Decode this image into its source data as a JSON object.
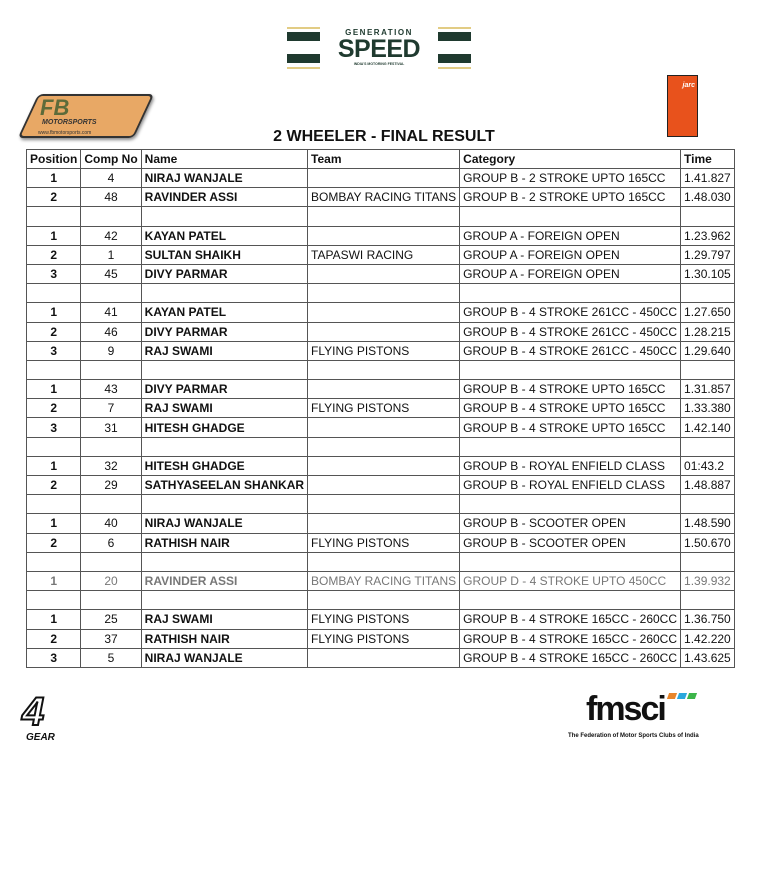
{
  "logos": {
    "top": {
      "line1": "GENERATION",
      "line2": "SPEED",
      "line3": "INDIA'S MOTORING FESTIVAL"
    },
    "left": {
      "text": "FB",
      "sub": "MOTORSPORTS",
      "url": "www.fbmotorsports.com"
    },
    "right": {
      "text": "jarc"
    },
    "bottom_left": {
      "text": "GEAR",
      "num": "4"
    },
    "bottom_right": {
      "text": "fmsci",
      "sub": "The Federation of Motor Sports Clubs of India"
    }
  },
  "title": "2 WHEELER - FINAL RESULT",
  "headers": [
    "Position",
    "Comp No",
    "Name",
    "Team",
    "Category",
    "Time"
  ],
  "rows": [
    [
      "1",
      "4",
      "NIRAJ WANJALE",
      "",
      "GROUP  B - 2 STROKE UPTO 165CC",
      "1.41.827"
    ],
    [
      "2",
      "48",
      "RAVINDER ASSI",
      "BOMBAY RACING TITANS",
      "GROUP  B - 2 STROKE UPTO 165CC",
      "1.48.030"
    ],
    [
      "",
      "",
      "",
      "",
      "",
      ""
    ],
    [
      "1",
      "42",
      "KAYAN PATEL",
      "",
      "GROUP A - FOREIGN OPEN",
      "1.23.962"
    ],
    [
      "2",
      "1",
      "SULTAN SHAIKH",
      "TAPASWI RACING",
      "GROUP A - FOREIGN OPEN",
      "1.29.797"
    ],
    [
      "3",
      "45",
      "DIVY PARMAR",
      "",
      "GROUP A - FOREIGN OPEN",
      "1.30.105"
    ],
    [
      "",
      "",
      "",
      "",
      "",
      ""
    ],
    [
      "1",
      "41",
      "KAYAN PATEL",
      "",
      "GROUP B - 4 STROKE 261CC - 450CC",
      "1.27.650"
    ],
    [
      "2",
      "46",
      "DIVY PARMAR",
      "",
      "GROUP B - 4 STROKE 261CC - 450CC",
      "1.28.215"
    ],
    [
      "3",
      "9",
      "RAJ SWAMI",
      "FLYING PISTONS",
      "GROUP B - 4 STROKE 261CC - 450CC",
      "1.29.640"
    ],
    [
      "",
      "",
      "",
      "",
      "",
      ""
    ],
    [
      "1",
      "43",
      "DIVY PARMAR",
      "",
      "GROUP B - 4 STROKE UPTO 165CC",
      "1.31.857"
    ],
    [
      "2",
      "7",
      "RAJ SWAMI",
      "FLYING PISTONS",
      "GROUP B - 4 STROKE UPTO 165CC",
      "1.33.380"
    ],
    [
      "3",
      "31",
      "HITESH GHADGE",
      "",
      "GROUP B - 4 STROKE UPTO 165CC",
      "1.42.140"
    ],
    [
      "",
      "",
      "",
      "",
      "",
      ""
    ],
    [
      "1",
      "32",
      "HITESH GHADGE",
      "",
      "GROUP B - ROYAL ENFIELD CLASS",
      "01:43.2"
    ],
    [
      "2",
      "29",
      "SATHYASEELAN SHANKAR",
      "",
      "GROUP B - ROYAL ENFIELD CLASS",
      "1.48.887"
    ],
    [
      "",
      "",
      "",
      "",
      "",
      ""
    ],
    [
      "1",
      "40",
      "NIRAJ WANJALE",
      "",
      "GROUP B - SCOOTER OPEN",
      "1.48.590"
    ],
    [
      "2",
      "6",
      "RATHISH NAIR",
      "FLYING PISTONS",
      "GROUP B - SCOOTER OPEN",
      "1.50.670"
    ],
    [
      "",
      "",
      "",
      "",
      "",
      ""
    ],
    [
      "1",
      "20",
      "RAVINDER ASSI",
      "BOMBAY RACING TITANS",
      "GROUP D - 4 STROKE UPTO 450CC",
      "1.39.932"
    ],
    [
      "",
      "",
      "",
      "",
      "",
      ""
    ],
    [
      "1",
      "25",
      "RAJ SWAMI",
      "FLYING PISTONS",
      "GROUP B - 4 STROKE 165CC - 260CC",
      "1.36.750"
    ],
    [
      "2",
      "37",
      "RATHISH NAIR",
      "FLYING PISTONS",
      "GROUP B - 4 STROKE 165CC - 260CC",
      "1.42.220"
    ],
    [
      "3",
      "5",
      "NIRAJ WANJALE",
      "",
      "GROUP B - 4 STROKE 165CC - 260CC",
      "1.43.625"
    ]
  ],
  "gray_row_index": 21
}
